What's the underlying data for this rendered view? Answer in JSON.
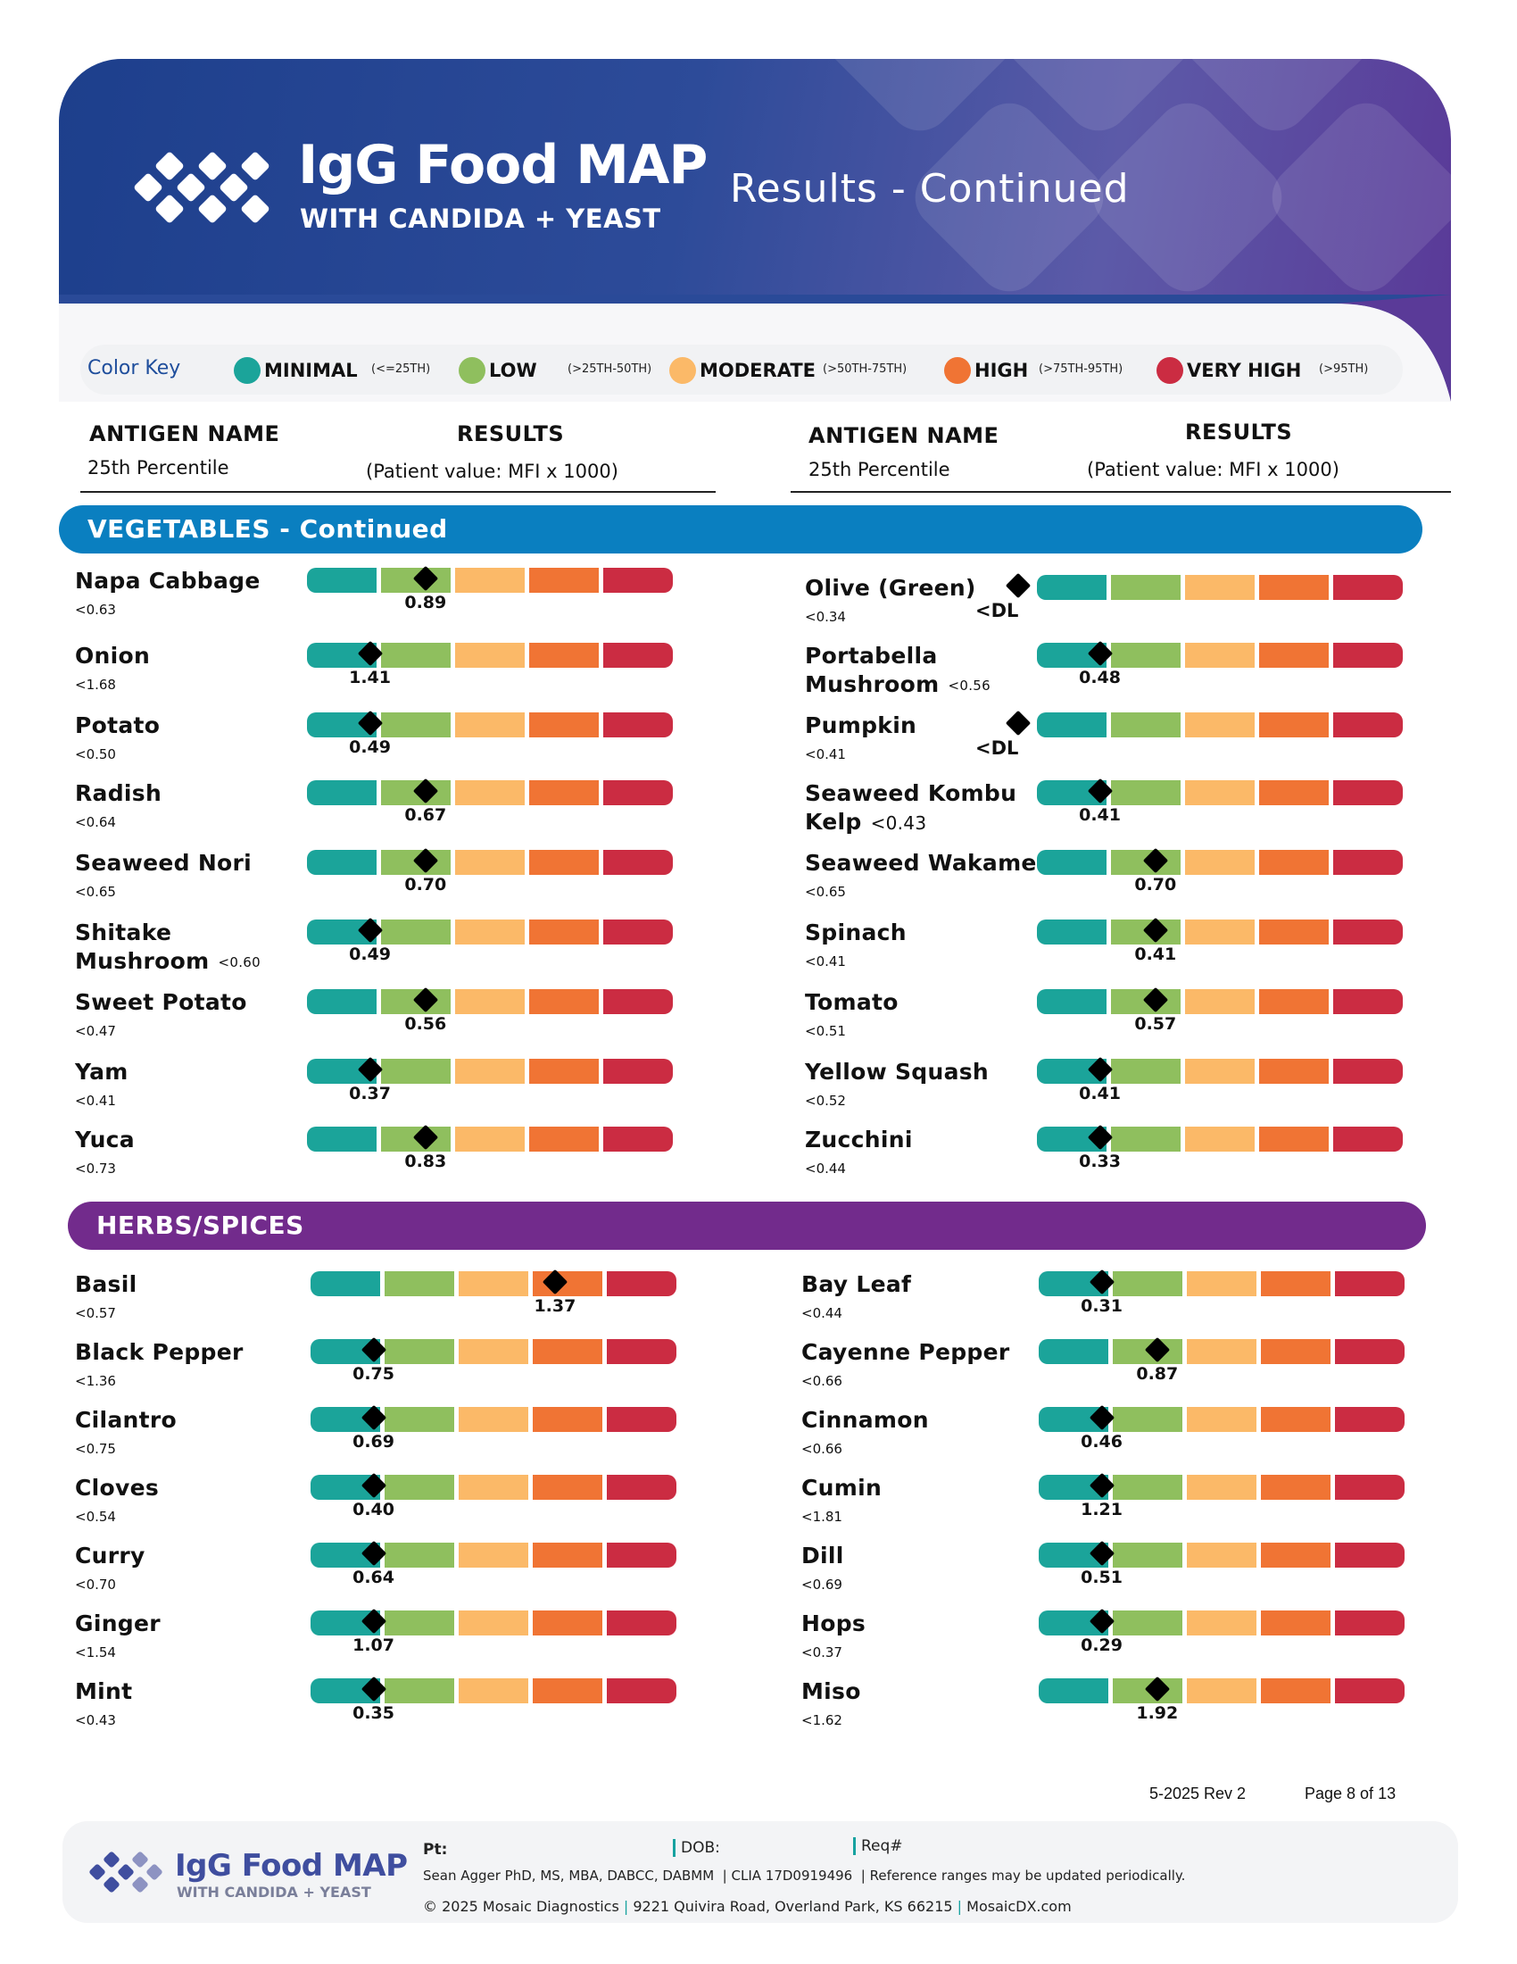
{
  "header": {
    "logo_title": "IgG Food MAP",
    "logo_subtitle": "WITH CANDIDA + YEAST",
    "page_title": "Results - Continued"
  },
  "color_key": {
    "label": "Color Key",
    "items": [
      {
        "name": "MINIMAL",
        "range": "(<=25TH)",
        "color": "#1ba49a"
      },
      {
        "name": "LOW",
        "range": "(>25TH-50TH)",
        "color": "#8fbf5e"
      },
      {
        "name": "MODERATE",
        "range": "(>50TH-75TH)",
        "color": "#fbb968"
      },
      {
        "name": "HIGH",
        "range": "(>75TH-95TH)",
        "color": "#f07434"
      },
      {
        "name": "VERY HIGH",
        "range": "(>95TH)",
        "color": "#cb2c42"
      }
    ]
  },
  "columns": {
    "antigen_name": "ANTIGEN NAME",
    "percentile": "25th Percentile",
    "results": "RESULTS",
    "results_sub": "(Patient value: MFI x 1000)"
  },
  "sections": {
    "vegetables": {
      "title": "VEGETABLES - Continued",
      "color": "#0a7fc0",
      "left": [
        {
          "name": "Napa Cabbage",
          "p25": "<0.63",
          "value": "0.89",
          "level": 1.6
        },
        {
          "name": "Onion",
          "p25": "<1.68",
          "value": "1.41",
          "level": 0.85
        },
        {
          "name": "Potato",
          "p25": "<0.50",
          "value": "0.49",
          "level": 0.85
        },
        {
          "name": "Radish",
          "p25": "<0.64",
          "value": "0.67",
          "level": 1.6
        },
        {
          "name": "Seaweed Nori",
          "p25": "<0.65",
          "value": "0.70",
          "level": 1.6
        },
        {
          "name": "Shitake",
          "name2": "Mushroom",
          "p25": "<0.60",
          "value": "0.49",
          "level": 0.85
        },
        {
          "name": "Sweet Potato",
          "p25": "<0.47",
          "value": "0.56",
          "level": 1.6
        },
        {
          "name": "Yam",
          "p25": "<0.41",
          "value": "0.37",
          "level": 0.85
        },
        {
          "name": "Yuca",
          "p25": "<0.73",
          "value": "0.83",
          "level": 1.6
        }
      ],
      "right": [
        {
          "name": "Olive (Green)",
          "p25": "<0.34",
          "value": "<DL",
          "level": -0.25
        },
        {
          "name": "Portabella",
          "name2": "Mushroom",
          "p25": "<0.56",
          "value": "0.48",
          "level": 0.85
        },
        {
          "name": "Pumpkin",
          "p25": "<0.41",
          "value": "<DL",
          "level": -0.25
        },
        {
          "name": "Seaweed Kombu",
          "name2": "Kelp",
          "p25": "<0.43",
          "p25_large": true,
          "value": "0.41",
          "level": 0.85
        },
        {
          "name": "Seaweed Wakame",
          "p25": "<0.65",
          "value": "0.70",
          "level": 1.6
        },
        {
          "name": "Spinach",
          "p25": "<0.41",
          "value": "0.41",
          "level": 1.6
        },
        {
          "name": "Tomato",
          "p25": "<0.51",
          "value": "0.57",
          "level": 1.6
        },
        {
          "name": "Yellow Squash",
          "p25": "<0.52",
          "value": "0.41",
          "level": 0.85
        },
        {
          "name": "Zucchini",
          "p25": "<0.44",
          "value": "0.33",
          "level": 0.85
        }
      ]
    },
    "herbs": {
      "title": "HERBS/SPICES",
      "color": "#722b8c",
      "left": [
        {
          "name": "Basil",
          "p25": "<0.57",
          "value": "1.37",
          "level": 3.3
        },
        {
          "name": "Black Pepper",
          "p25": "<1.36",
          "value": "0.75",
          "level": 0.85
        },
        {
          "name": "Cilantro",
          "p25": "<0.75",
          "value": "0.69",
          "level": 0.85
        },
        {
          "name": "Cloves",
          "p25": "<0.54",
          "value": "0.40",
          "level": 0.85
        },
        {
          "name": "Curry",
          "p25": "<0.70",
          "value": "0.64",
          "level": 0.85
        },
        {
          "name": "Ginger",
          "p25": "<1.54",
          "value": "1.07",
          "level": 0.85
        },
        {
          "name": "Mint",
          "p25": "<0.43",
          "value": "0.35",
          "level": 0.85
        }
      ],
      "right": [
        {
          "name": "Bay Leaf",
          "p25": "<0.44",
          "value": "0.31",
          "level": 0.85
        },
        {
          "name": "Cayenne Pepper",
          "p25": "<0.66",
          "value": "0.87",
          "level": 1.6
        },
        {
          "name": "Cinnamon",
          "p25": "<0.66",
          "value": "0.46",
          "level": 0.85
        },
        {
          "name": "Cumin",
          "p25": "<1.81",
          "value": "1.21",
          "level": 0.85
        },
        {
          "name": "Dill",
          "p25": "<0.69",
          "value": "0.51",
          "level": 0.85
        },
        {
          "name": "Hops",
          "p25": "<0.37",
          "value": "0.29",
          "level": 0.85
        },
        {
          "name": "Miso",
          "p25": "<1.62",
          "value": "1.92",
          "level": 1.6
        }
      ]
    }
  },
  "footer": {
    "revision": "5-2025 Rev 2",
    "page": "Page 8 of 13",
    "logo_title": "IgG Food MAP",
    "logo_subtitle": "WITH CANDIDA + YEAST",
    "pt_label": "Pt:",
    "dob_label": "DOB:",
    "req_label": "Req#",
    "director": "Sean Agger PhD, MS, MBA, DABCC, DABMM",
    "clia": "CLIA 17D0919496",
    "note": "Reference ranges may be updated periodically.",
    "copyright": "© 2025 Mosaic Diagnostics",
    "address": "9221 Quivira Road, Overland Park, KS 66215",
    "website": "MosaicDX.com"
  }
}
